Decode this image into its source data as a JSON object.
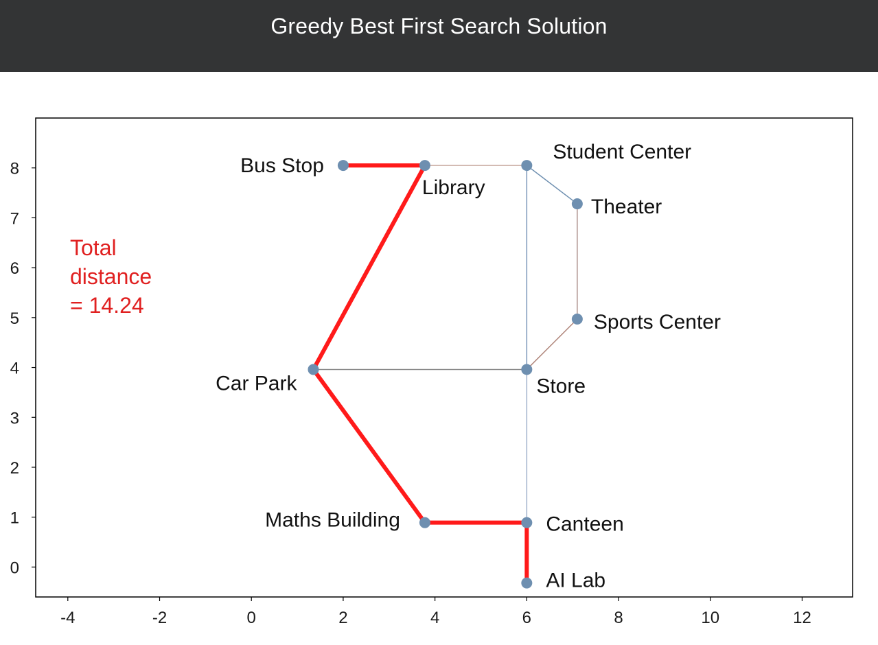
{
  "header": {
    "title": "Greedy Best First Search Solution"
  },
  "chart_data": {
    "type": "scatter",
    "title": "Greedy Best First Search Solution",
    "xlim": [
      -4.7,
      13.1
    ],
    "ylim": [
      -0.6,
      9.0
    ],
    "xticks": [
      -4,
      -2,
      0,
      2,
      4,
      6,
      8,
      10,
      12
    ],
    "yticks": [
      0,
      1,
      2,
      3,
      4,
      5,
      6,
      7,
      8
    ],
    "grid": false,
    "nodes": [
      {
        "name": "Bus Stop",
        "x": 2.0,
        "y": 8.05
      },
      {
        "name": "Library",
        "x": 3.78,
        "y": 8.05
      },
      {
        "name": "Student Center",
        "x": 6.0,
        "y": 8.05
      },
      {
        "name": "Theater",
        "x": 7.1,
        "y": 7.28
      },
      {
        "name": "Sports Center",
        "x": 7.1,
        "y": 4.97
      },
      {
        "name": "Car Park",
        "x": 1.35,
        "y": 3.96
      },
      {
        "name": "Store",
        "x": 6.0,
        "y": 3.96
      },
      {
        "name": "Maths Building",
        "x": 3.78,
        "y": 0.89
      },
      {
        "name": "Canteen",
        "x": 6.0,
        "y": 0.89
      },
      {
        "name": "AI Lab",
        "x": 6.0,
        "y": -0.32
      }
    ],
    "edges": [
      {
        "from": "Library",
        "to": "Student Center",
        "color": "#c8aaa0"
      },
      {
        "from": "Student Center",
        "to": "Theater",
        "color": "#6e8fb0"
      },
      {
        "from": "Theater",
        "to": "Sports Center",
        "color": "#b09590"
      },
      {
        "from": "Sports Center",
        "to": "Store",
        "color": "#b0857a"
      },
      {
        "from": "Student Center",
        "to": "Store",
        "color": "#7a96b8"
      },
      {
        "from": "Store",
        "to": "Canteen",
        "color": "#a0b2cc"
      },
      {
        "from": "Car Park",
        "to": "Store",
        "color": "#8a8a8a"
      }
    ],
    "path": [
      "Bus Stop",
      "Library",
      "Car Park",
      "Maths Building",
      "Canteen",
      "AI Lab"
    ],
    "annotation": {
      "lines": [
        "Total",
        "distance",
        "= 14.24"
      ]
    },
    "colors": {
      "path": "#ff1a1a",
      "node": "#6e8fb0",
      "annotation": "#e02020",
      "axis": "#000000",
      "banner": "#333435"
    }
  }
}
